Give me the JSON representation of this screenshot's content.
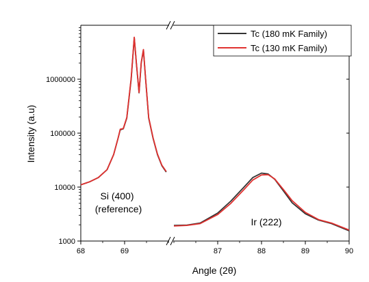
{
  "chart_data": {
    "type": "line",
    "xlabel": "Angle (2θ)",
    "ylabel": "Intensity (a.u)",
    "yscale": "log",
    "ylim": [
      1000,
      10000000
    ],
    "y_ticks": [
      1000,
      10000,
      100000,
      1000000
    ],
    "y_tick_labels": [
      "1000",
      "10000",
      "100000",
      "1000000"
    ],
    "x_segments": [
      {
        "xlim": [
          68,
          70
        ],
        "ticks": [
          68,
          69
        ],
        "tick_labels": [
          "68",
          "69"
        ]
      },
      {
        "xlim": [
          86,
          90
        ],
        "ticks": [
          87,
          88,
          89,
          90
        ],
        "tick_labels": [
          "87",
          "88",
          "89",
          "90"
        ]
      }
    ],
    "axis_break": "//",
    "legend": {
      "placement": "top-right",
      "entries": [
        "Tc (180 mK Family)",
        "Tc (130 mK Family)"
      ]
    },
    "series": [
      {
        "name": "Tc (180 mK Family)",
        "color": "#333333",
        "segment1": [
          [
            68.0,
            11000
          ],
          [
            68.2,
            12500
          ],
          [
            68.4,
            15000
          ],
          [
            68.6,
            21000
          ],
          [
            68.75,
            40000
          ],
          [
            68.85,
            80000
          ],
          [
            68.9,
            115000
          ],
          [
            68.97,
            120000
          ],
          [
            69.05,
            190000
          ],
          [
            69.15,
            1000000
          ],
          [
            69.22,
            5900000
          ],
          [
            69.27,
            1900000
          ],
          [
            69.33,
            560000
          ],
          [
            69.38,
            2000000
          ],
          [
            69.43,
            3500000
          ],
          [
            69.48,
            1000000
          ],
          [
            69.55,
            190000
          ],
          [
            69.65,
            80000
          ],
          [
            69.75,
            40000
          ],
          [
            69.85,
            25000
          ],
          [
            69.95,
            19000
          ]
        ],
        "segment2": [
          [
            86.0,
            1950
          ],
          [
            86.3,
            1980
          ],
          [
            86.6,
            2150
          ],
          [
            87.0,
            3300
          ],
          [
            87.3,
            5500
          ],
          [
            87.6,
            10000
          ],
          [
            87.8,
            15000
          ],
          [
            88.0,
            18200
          ],
          [
            88.15,
            17500
          ],
          [
            88.3,
            14000
          ],
          [
            88.5,
            8500
          ],
          [
            88.7,
            5100
          ],
          [
            89.0,
            3200
          ],
          [
            89.3,
            2450
          ],
          [
            89.6,
            2100
          ],
          [
            90.0,
            1550
          ]
        ]
      },
      {
        "name": "Tc (130 mK Family)",
        "color": "#e0312f",
        "segment1": [
          [
            68.0,
            11000
          ],
          [
            68.2,
            12500
          ],
          [
            68.4,
            15000
          ],
          [
            68.6,
            21000
          ],
          [
            68.75,
            40000
          ],
          [
            68.85,
            80000
          ],
          [
            68.9,
            118000
          ],
          [
            68.97,
            122000
          ],
          [
            69.05,
            195000
          ],
          [
            69.15,
            1050000
          ],
          [
            69.22,
            6000000
          ],
          [
            69.27,
            1950000
          ],
          [
            69.33,
            570000
          ],
          [
            69.38,
            2050000
          ],
          [
            69.43,
            3550000
          ],
          [
            69.48,
            1020000
          ],
          [
            69.55,
            195000
          ],
          [
            69.65,
            82000
          ],
          [
            69.75,
            41000
          ],
          [
            69.85,
            25500
          ],
          [
            69.95,
            19500
          ]
        ],
        "segment2": [
          [
            86.0,
            1900
          ],
          [
            86.3,
            1950
          ],
          [
            86.6,
            2100
          ],
          [
            87.0,
            3100
          ],
          [
            87.3,
            5000
          ],
          [
            87.6,
            9000
          ],
          [
            87.8,
            13500
          ],
          [
            88.0,
            16800
          ],
          [
            88.15,
            17000
          ],
          [
            88.3,
            14200
          ],
          [
            88.5,
            9000
          ],
          [
            88.7,
            5600
          ],
          [
            89.0,
            3400
          ],
          [
            89.3,
            2500
          ],
          [
            89.6,
            2150
          ],
          [
            90.0,
            1600
          ]
        ]
      }
    ],
    "annotations": [
      {
        "id": "si",
        "lines": [
          "Si (400)",
          "(reference)"
        ]
      },
      {
        "id": "ir",
        "lines": [
          "Ir (222)"
        ]
      }
    ]
  }
}
